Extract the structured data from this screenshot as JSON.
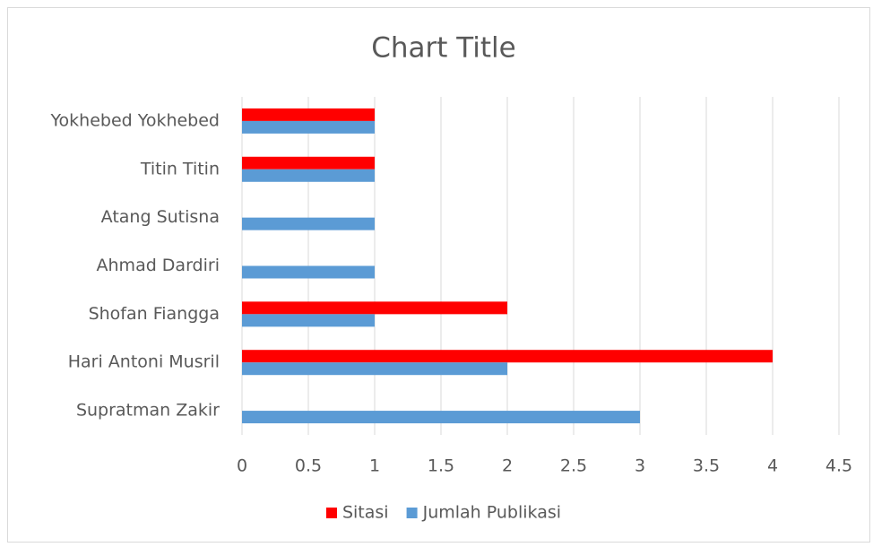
{
  "chart_data": {
    "type": "bar",
    "orientation": "horizontal",
    "title": "Chart Title",
    "categories": [
      "Supratman Zakir",
      "Hari Antoni Musril",
      "Shofan Fiangga",
      "Ahmad Dardiri",
      "Atang Sutisna",
      "Titin Titin",
      "Yokhebed Yokhebed"
    ],
    "series": [
      {
        "name": "Sitasi",
        "color": "#ff0000",
        "values": [
          0,
          4,
          2,
          0,
          0,
          1,
          1
        ]
      },
      {
        "name": "Jumlah Publikasi",
        "color": "#5b9bd5",
        "values": [
          3,
          2,
          1,
          1,
          1,
          1,
          1
        ]
      }
    ],
    "xlim": [
      0,
      4.5
    ],
    "xticks": [
      0,
      0.5,
      1,
      1.5,
      2,
      2.5,
      3,
      3.5,
      4,
      4.5
    ],
    "grid": true,
    "legend": "bottom"
  }
}
